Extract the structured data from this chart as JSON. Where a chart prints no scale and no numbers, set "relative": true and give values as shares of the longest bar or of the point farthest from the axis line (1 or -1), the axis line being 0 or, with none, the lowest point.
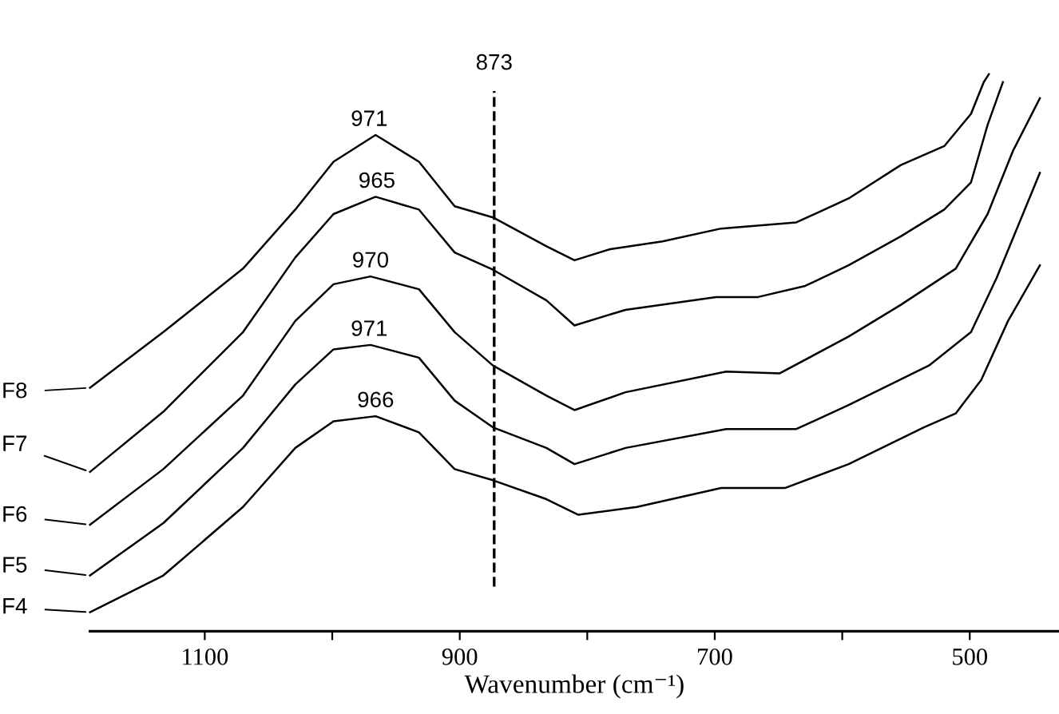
{
  "chart_data": {
    "type": "line",
    "relative": true,
    "xlabel": "Wavenumber (cm⁻¹)",
    "legend": "left",
    "xlim": [
      1190,
      430
    ],
    "xticks": [
      1100,
      {
        "value": 1000,
        "label": null
      },
      900,
      {
        "value": 800,
        "label": null
      },
      700,
      {
        "value": 600,
        "label": null
      },
      500
    ],
    "series": [
      {
        "name": "F8",
        "color": "#000000",
        "x": [
          1190,
          1132.5,
          1070,
          1029,
          999,
          966,
          932,
          904,
          874,
          832,
          810,
          782,
          741,
          695,
          636,
          595,
          554,
          520,
          499,
          489,
          485
        ],
        "values": [
          0.437,
          0.537,
          0.651,
          0.757,
          0.843,
          0.891,
          0.843,
          0.763,
          0.743,
          0.691,
          0.666,
          0.686,
          0.7,
          0.723,
          0.734,
          0.777,
          0.837,
          0.871,
          0.929,
          0.986,
          1.0
        ]
      },
      {
        "name": "F7",
        "color": "#000000",
        "x": [
          1190,
          1132.5,
          1070,
          1029,
          999,
          966,
          932,
          904,
          874,
          832,
          810,
          770,
          699,
          666,
          629,
          595,
          554,
          520,
          499,
          486,
          474
        ],
        "values": [
          0.286,
          0.394,
          0.537,
          0.671,
          0.749,
          0.78,
          0.757,
          0.68,
          0.649,
          0.594,
          0.549,
          0.577,
          0.6,
          0.6,
          0.62,
          0.657,
          0.709,
          0.757,
          0.806,
          0.909,
          0.986
        ]
      },
      {
        "name": "F6",
        "color": "#000000",
        "x": [
          1190,
          1132.5,
          1070,
          1029,
          999,
          970,
          932,
          904,
          874,
          832,
          810,
          770,
          691,
          649,
          595,
          554,
          511,
          486,
          466,
          445
        ],
        "values": [
          0.191,
          0.291,
          0.423,
          0.557,
          0.623,
          0.637,
          0.614,
          0.537,
          0.477,
          0.423,
          0.397,
          0.429,
          0.466,
          0.463,
          0.529,
          0.586,
          0.651,
          0.749,
          0.863,
          0.957
        ]
      },
      {
        "name": "F5",
        "color": "#000000",
        "x": [
          1190,
          1132.5,
          1070,
          1029,
          999,
          970,
          932,
          904,
          874,
          832,
          810,
          770,
          691,
          636,
          595,
          532,
          499,
          479,
          445
        ],
        "values": [
          0.1,
          0.194,
          0.329,
          0.443,
          0.506,
          0.514,
          0.491,
          0.414,
          0.366,
          0.329,
          0.3,
          0.329,
          0.363,
          0.363,
          0.406,
          0.477,
          0.537,
          0.634,
          0.823
        ]
      },
      {
        "name": "F4",
        "color": "#000000",
        "x": [
          1190,
          1132.5,
          1070,
          1029,
          999,
          966,
          932,
          904,
          874,
          832,
          807,
          761,
          695,
          645,
          595,
          536,
          511,
          491,
          470,
          445
        ],
        "values": [
          0.034,
          0.1,
          0.223,
          0.329,
          0.377,
          0.386,
          0.357,
          0.291,
          0.271,
          0.237,
          0.209,
          0.223,
          0.257,
          0.257,
          0.3,
          0.366,
          0.391,
          0.451,
          0.557,
          0.657
        ]
      }
    ],
    "annotations": [
      {
        "text": "971",
        "x": 971,
        "y": 0.891
      },
      {
        "text": "965",
        "x": 965,
        "y": 0.78
      },
      {
        "text": "970",
        "x": 970,
        "y": 0.637
      },
      {
        "text": "971",
        "x": 971,
        "y": 0.514
      },
      {
        "text": "966",
        "x": 966,
        "y": 0.386
      }
    ],
    "ref_lines": [
      {
        "axis": "x",
        "value": 873,
        "label": "873",
        "line_style": "dashed",
        "color": "#000000"
      }
    ]
  }
}
